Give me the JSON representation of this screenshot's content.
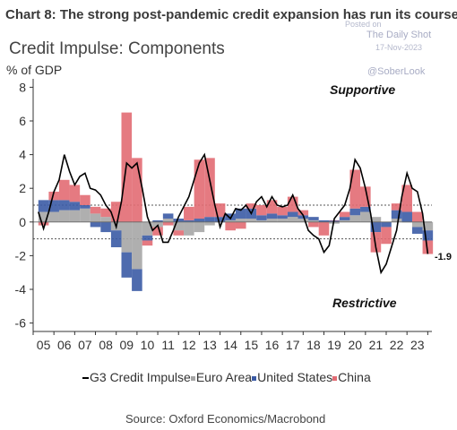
{
  "header": {
    "title": "Chart 8: The strong post-pandemic credit expansion has run its course",
    "subtitle": "Credit Impulse: Components",
    "units": "% of GDP"
  },
  "watermark": {
    "posted_on": "Posted on",
    "site": "The Daily Shot",
    "date": "17-Nov-2023",
    "handle": "@SoberLook"
  },
  "annotations": {
    "supportive": "Supportive",
    "restrictive": "Restrictive",
    "last_value": "-1.9"
  },
  "source": "Source: Oxford Economics/Macrobond",
  "colors": {
    "euro_area": "#a6a6a6",
    "united_states": "#3b5ba5",
    "china": "#e26b73",
    "g3": "#000000",
    "band": "#555555"
  },
  "chart_data": {
    "type": "bar",
    "stacked": true,
    "x_unit": "year",
    "title": "Credit Impulse: Components",
    "ylabel": "% of GDP",
    "xlim": [
      2004.5,
      2023.7
    ],
    "ylim": [
      -6.5,
      8.5
    ],
    "yticks": [
      -6,
      -4,
      -2,
      0,
      2,
      4,
      6,
      8
    ],
    "ytick_labels": [
      "-6",
      "-4",
      "-2",
      "0",
      "2",
      "4",
      "6",
      "8"
    ],
    "xtick_labels": [
      "05",
      "06",
      "07",
      "08",
      "09",
      "10",
      "11",
      "12",
      "13",
      "14",
      "15",
      "16",
      "17",
      "18",
      "19",
      "20",
      "21",
      "22",
      "23"
    ],
    "xtick_positions": [
      2005,
      2006,
      2007,
      2008,
      2009,
      2010,
      2011,
      2012,
      2013,
      2014,
      2015,
      2016,
      2017,
      2018,
      2019,
      2020,
      2021,
      2022,
      2023
    ],
    "reference_lines": [
      1.0,
      -1.0
    ],
    "grid": false,
    "legend_position": "bottom",
    "legend": [
      "G3 Credit Impulse",
      "Euro Area",
      "United States",
      "China"
    ],
    "series": [
      {
        "name": "Euro Area",
        "kind": "bar",
        "color": "#a6a6a6",
        "x": [
          2005.0,
          2005.5,
          2006.0,
          2006.5,
          2007.0,
          2007.5,
          2008.0,
          2008.5,
          2009.0,
          2009.5,
          2010.0,
          2010.5,
          2011.0,
          2011.5,
          2012.0,
          2012.5,
          2013.0,
          2013.5,
          2014.0,
          2014.5,
          2015.0,
          2015.5,
          2016.0,
          2016.5,
          2017.0,
          2017.5,
          2018.0,
          2018.5,
          2019.0,
          2019.5,
          2020.0,
          2020.5,
          2021.0,
          2021.5,
          2022.0,
          2022.5,
          2023.0,
          2023.5
        ],
        "values": [
          0.6,
          0.6,
          0.7,
          0.7,
          0.8,
          0.5,
          0.3,
          -0.5,
          -1.8,
          -2.8,
          -0.8,
          -0.3,
          0.2,
          -0.5,
          -0.8,
          -0.6,
          -0.2,
          0.0,
          0.1,
          0.2,
          0.2,
          0.1,
          0.2,
          0.2,
          0.3,
          0.2,
          0.1,
          0.0,
          -0.1,
          0.1,
          0.4,
          0.6,
          0.3,
          0.0,
          0.2,
          0.0,
          -0.3,
          -0.5
        ]
      },
      {
        "name": "United States",
        "kind": "bar",
        "color": "#3b5ba5",
        "x": [
          2005.0,
          2005.5,
          2006.0,
          2006.5,
          2007.0,
          2007.5,
          2008.0,
          2008.5,
          2009.0,
          2009.5,
          2010.0,
          2010.5,
          2011.0,
          2011.5,
          2012.0,
          2012.5,
          2013.0,
          2013.5,
          2014.0,
          2014.5,
          2015.0,
          2015.5,
          2016.0,
          2016.5,
          2017.0,
          2017.5,
          2018.0,
          2018.5,
          2019.0,
          2019.5,
          2020.0,
          2020.5,
          2021.0,
          2021.5,
          2022.0,
          2022.5,
          2023.0,
          2023.5
        ],
        "values": [
          0.7,
          0.7,
          0.6,
          0.5,
          0.2,
          -0.3,
          -0.6,
          -1.0,
          -1.5,
          -1.3,
          -0.3,
          0.1,
          0.3,
          0.2,
          0.1,
          0.2,
          0.3,
          0.3,
          0.4,
          0.6,
          0.6,
          0.3,
          0.3,
          0.2,
          0.3,
          0.2,
          0.2,
          0.1,
          0.1,
          0.2,
          0.4,
          0.3,
          -0.6,
          -0.3,
          0.5,
          0.6,
          -0.4,
          -0.6
        ]
      },
      {
        "name": "China",
        "kind": "bar",
        "color": "#e26b73",
        "x": [
          2005.0,
          2005.5,
          2006.0,
          2006.5,
          2007.0,
          2007.5,
          2008.0,
          2008.5,
          2009.0,
          2009.5,
          2010.0,
          2010.5,
          2011.0,
          2011.5,
          2012.0,
          2012.5,
          2013.0,
          2013.5,
          2014.0,
          2014.5,
          2015.0,
          2015.5,
          2016.0,
          2016.5,
          2017.0,
          2017.5,
          2018.0,
          2018.5,
          2019.0,
          2019.5,
          2020.0,
          2020.5,
          2021.0,
          2021.5,
          2022.0,
          2022.5,
          2023.0,
          2023.5
        ],
        "values": [
          -0.2,
          0.5,
          1.2,
          1.0,
          0.6,
          0.4,
          0.5,
          1.2,
          6.5,
          3.8,
          -0.3,
          -0.5,
          -0.2,
          -0.3,
          0.8,
          3.5,
          3.5,
          0.8,
          -0.5,
          -0.4,
          0.3,
          0.6,
          0.8,
          0.5,
          0.9,
          0.3,
          -0.3,
          -0.8,
          0.0,
          0.3,
          2.3,
          1.2,
          -1.2,
          -1.0,
          0.4,
          1.6,
          0.6,
          -0.8
        ]
      },
      {
        "name": "G3 Credit Impulse",
        "kind": "line",
        "color": "#000000",
        "x": [
          2004.75,
          2005.0,
          2005.25,
          2005.5,
          2005.75,
          2006.0,
          2006.25,
          2006.5,
          2006.75,
          2007.0,
          2007.25,
          2007.5,
          2007.75,
          2008.0,
          2008.25,
          2008.5,
          2008.75,
          2009.0,
          2009.25,
          2009.5,
          2009.75,
          2010.0,
          2010.25,
          2010.5,
          2010.75,
          2011.0,
          2011.25,
          2011.5,
          2011.75,
          2012.0,
          2012.25,
          2012.5,
          2012.75,
          2013.0,
          2013.25,
          2013.5,
          2013.75,
          2014.0,
          2014.25,
          2014.5,
          2014.75,
          2015.0,
          2015.25,
          2015.5,
          2015.75,
          2016.0,
          2016.25,
          2016.5,
          2016.75,
          2017.0,
          2017.25,
          2017.5,
          2017.75,
          2018.0,
          2018.25,
          2018.5,
          2018.75,
          2019.0,
          2019.25,
          2019.5,
          2019.75,
          2020.0,
          2020.25,
          2020.5,
          2020.75,
          2021.0,
          2021.25,
          2021.5,
          2021.75,
          2022.0,
          2022.25,
          2022.5,
          2022.75,
          2023.0,
          2023.25,
          2023.5
        ],
        "values": [
          0.6,
          -0.4,
          0.6,
          1.8,
          2.5,
          4.0,
          3.0,
          2.2,
          2.7,
          2.9,
          2.0,
          1.9,
          1.6,
          1.0,
          0.6,
          -0.3,
          1.2,
          3.5,
          3.2,
          3.5,
          2.0,
          0.3,
          -0.5,
          -0.2,
          -1.2,
          -1.2,
          -0.5,
          0.3,
          0.9,
          1.5,
          2.5,
          3.5,
          4.0,
          2.5,
          1.0,
          -0.3,
          0.5,
          0.2,
          0.8,
          0.7,
          1.0,
          0.5,
          1.2,
          1.5,
          0.9,
          1.5,
          1.0,
          0.9,
          1.0,
          1.6,
          0.8,
          0.4,
          -0.5,
          -0.8,
          -1.0,
          -1.8,
          -1.4,
          0.2,
          0.6,
          1.0,
          2.0,
          3.7,
          3.2,
          2.0,
          0.5,
          -1.5,
          -3.0,
          -2.5,
          -1.5,
          -0.5,
          1.5,
          2.9,
          2.0,
          1.8,
          0.5,
          -1.9
        ]
      }
    ]
  }
}
